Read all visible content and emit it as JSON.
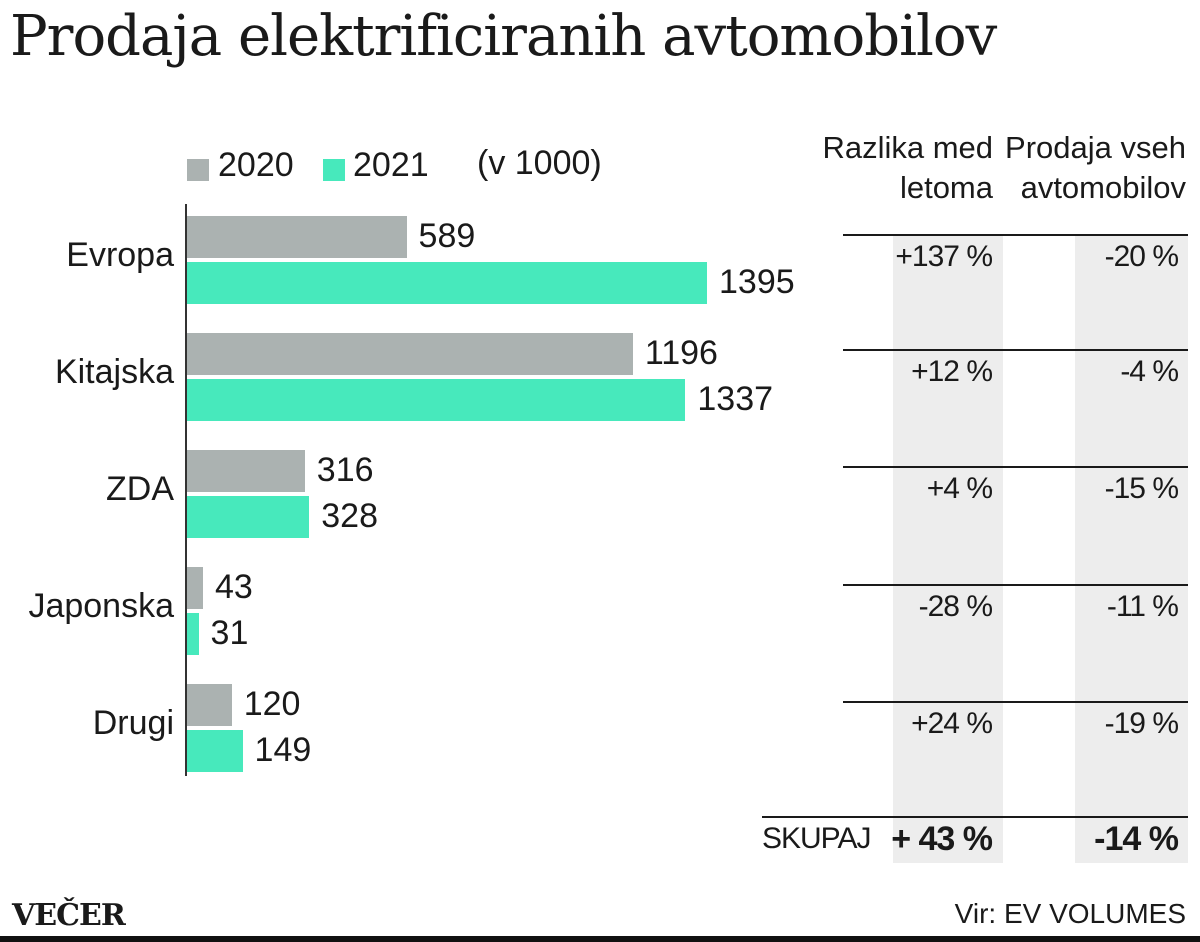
{
  "title": "Prodaja elektrificiranih avtomobilov",
  "chart_data": {
    "type": "bar",
    "orientation": "horizontal",
    "unit": "(v 1000)",
    "categories": [
      "Evropa",
      "Kitajska",
      "ZDA",
      "Japonska",
      "Drugi"
    ],
    "series": [
      {
        "name": "2020",
        "color": "#abb2b1",
        "values": [
          589,
          1196,
          316,
          43,
          120
        ]
      },
      {
        "name": "2021",
        "color": "#47e9bc",
        "values": [
          1395,
          1337,
          328,
          31,
          149
        ]
      }
    ],
    "xlim": [
      0,
      1395
    ],
    "grid": false,
    "legend": "top"
  },
  "table": {
    "headers": [
      [
        "Razlika med",
        "letoma"
      ],
      [
        "Prodaja vseh",
        "avtomobilov"
      ]
    ],
    "rows": [
      [
        "+137 %",
        "-20 %"
      ],
      [
        "+12 %",
        "-4 %"
      ],
      [
        "+4 %",
        "-15 %"
      ],
      [
        "-28 %",
        "-11 %"
      ],
      [
        "+24 %",
        "-19 %"
      ]
    ],
    "total_label": "SKUPAJ",
    "total": [
      "+ 43 %",
      "-14 %"
    ],
    "shade_color": "#ededed"
  },
  "footer": {
    "logo": "VEČER",
    "source": "Vir: EV VOLUMES"
  }
}
